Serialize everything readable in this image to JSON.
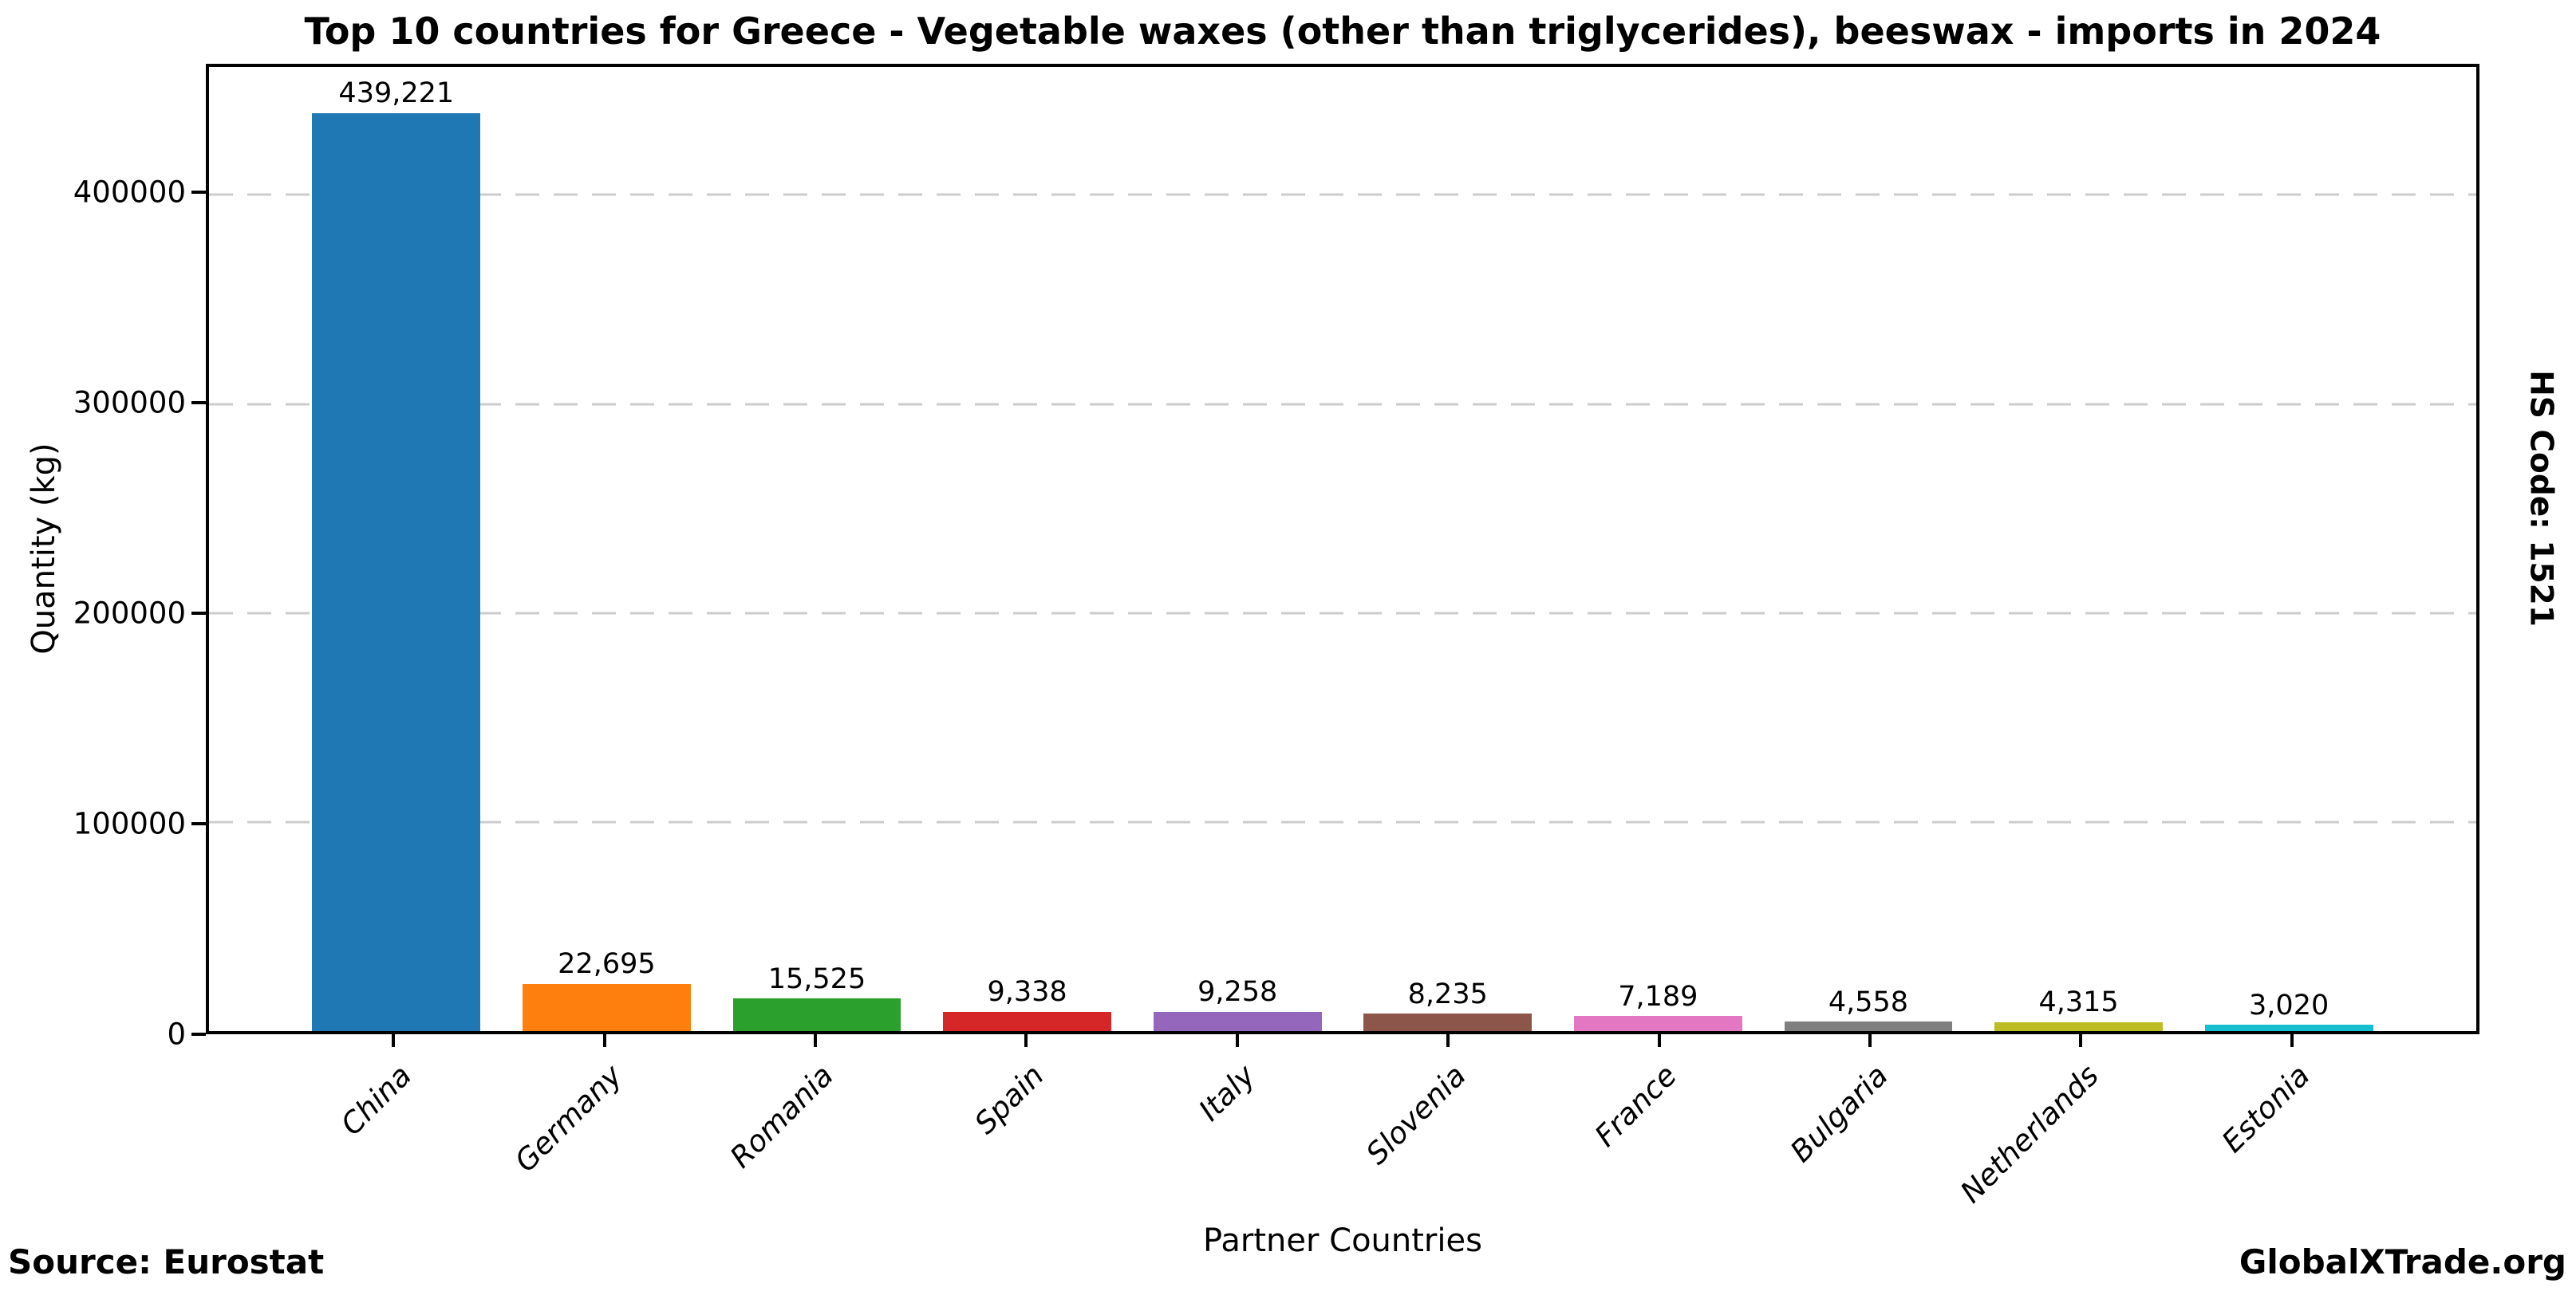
{
  "chart_data": {
    "type": "bar",
    "title": "Top 10 countries for Greece - Vegetable waxes (other than triglycerides), beeswax - imports in 2024",
    "xlabel": "Partner Countries",
    "ylabel": "Quantity (kg)",
    "categories": [
      "China",
      "Germany",
      "Romania",
      "Spain",
      "Italy",
      "Slovenia",
      "France",
      "Bulgaria",
      "Netherlands",
      "Estonia"
    ],
    "values": [
      439221,
      22695,
      15525,
      9338,
      9258,
      8235,
      7189,
      4558,
      4315,
      3020
    ],
    "value_labels": [
      "439,221",
      "22,695",
      "15,525",
      "9,338",
      "9,258",
      "8,235",
      "7,189",
      "4,558",
      "4,315",
      "3,020"
    ],
    "bar_colors": [
      "#1f77b4",
      "#ff7f0e",
      "#2ca02c",
      "#d62728",
      "#9467bd",
      "#8c564b",
      "#e377c2",
      "#7f7f7f",
      "#bcbd22",
      "#17becf"
    ],
    "ylim": [
      0,
      461182
    ],
    "yticks": [
      0,
      100000,
      200000,
      300000,
      400000
    ],
    "ytick_labels": [
      "0",
      "100000",
      "200000",
      "300000",
      "400000"
    ],
    "grid": "horizontal-dashed",
    "grid_color": "#cccccc",
    "legend": "none"
  },
  "annotations": {
    "source": "Source: Eurostat",
    "brand": "GlobalXTrade.org",
    "hs_code": "HS Code: 1521"
  }
}
